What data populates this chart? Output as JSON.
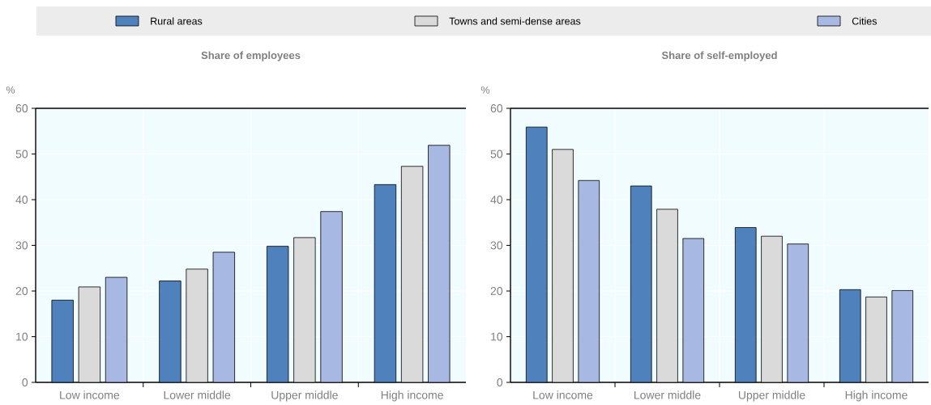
{
  "chart_data": [
    {
      "type": "bar",
      "title": "Share of employees",
      "ylabel": "%",
      "categories": [
        "Low income",
        "Lower middle",
        "Upper middle",
        "High income"
      ],
      "series": [
        {
          "name": "Rural areas",
          "color": "#4f81bd",
          "values": [
            18.0,
            22.2,
            29.8,
            43.3
          ]
        },
        {
          "name": "Towns and semi-dense areas",
          "color": "#dadada",
          "values": [
            20.9,
            24.8,
            31.7,
            47.3
          ]
        },
        {
          "name": "Cities",
          "color": "#a7b8e2",
          "values": [
            23.0,
            28.5,
            37.4,
            51.9
          ]
        }
      ],
      "ylim": [
        0,
        60
      ],
      "yticks": [
        0,
        10,
        20,
        30,
        40,
        50,
        60
      ],
      "grid": true,
      "legend": "top"
    },
    {
      "type": "bar",
      "title": "Share of self-employed",
      "ylabel": "%",
      "categories": [
        "Low income",
        "Lower middle",
        "Upper middle",
        "High income"
      ],
      "series": [
        {
          "color": "#4f81bd",
          "values": [
            55.9,
            43.0,
            33.9,
            20.3
          ]
        },
        {
          "color": "#dadada",
          "values": [
            51.0,
            37.9,
            32.0,
            18.7
          ]
        },
        {
          "color": "#a7b8e2",
          "values": [
            44.2,
            31.5,
            30.3,
            20.1
          ]
        }
      ],
      "ylim": [
        0,
        60
      ],
      "yticks": [
        0,
        10,
        20,
        30,
        40,
        50,
        60
      ],
      "grid": true
    }
  ]
}
